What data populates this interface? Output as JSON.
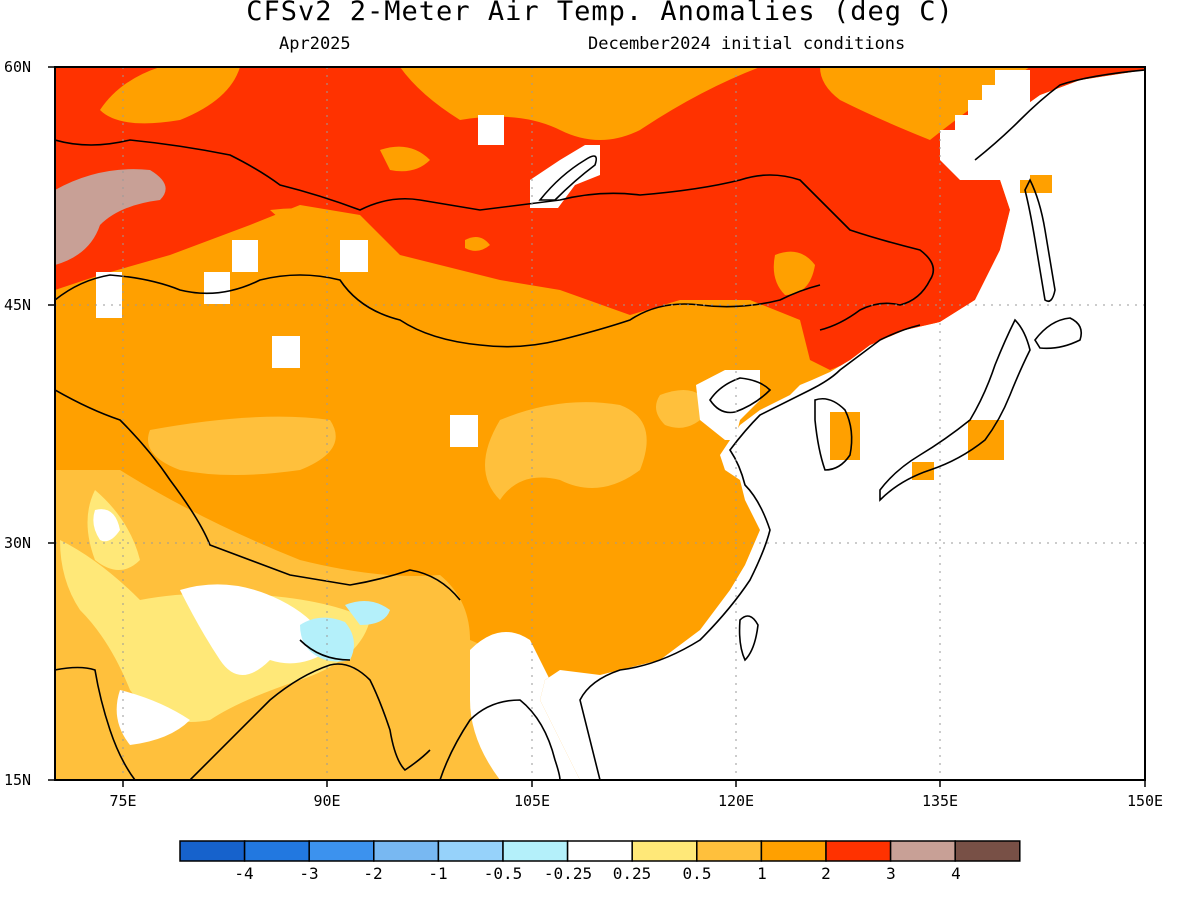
{
  "title": "CFSv2 2-Meter Air Temp. Anomalies (deg C)",
  "subtitle_left": "Apr2025",
  "subtitle_right": "December2024 initial conditions",
  "latitude_labels": [
    "60N",
    "45N",
    "30N",
    "15N"
  ],
  "longitude_labels": [
    "75E",
    "90E",
    "105E",
    "120E",
    "135E",
    "150E"
  ],
  "map": {
    "region": "East & Central Asia",
    "lon_range_deg": [
      70,
      150
    ],
    "lat_range_deg": [
      15,
      60
    ],
    "gridlines": "dotted",
    "coastlines": true,
    "national_borders": true
  },
  "colorbar": {
    "bins": [
      {
        "range": "< -4",
        "color": "#1662cc"
      },
      {
        "range": "-4 to -3",
        "color": "#2278e0"
      },
      {
        "range": "-3 to -2",
        "color": "#3c92ee"
      },
      {
        "range": "-2 to -1",
        "color": "#78b8f2"
      },
      {
        "range": "-1 to -0.5",
        "color": "#96d2fa"
      },
      {
        "range": "-0.5 to -0.25",
        "color": "#b4f0fa"
      },
      {
        "range": "-0.25 to 0.25",
        "color": "#ffffff"
      },
      {
        "range": "0.25 to 0.5",
        "color": "#ffe878"
      },
      {
        "range": "0.5 to 1",
        "color": "#ffc03c"
      },
      {
        "range": "1 to 2",
        "color": "#ffa000"
      },
      {
        "range": "2 to 3",
        "color": "#ff3200"
      },
      {
        "range": "3 to 4",
        "color": "#c8a096"
      },
      {
        "range": "> 4",
        "color": "#785046"
      }
    ],
    "tick_labels": [
      "-4",
      "-3",
      "-2",
      "-1",
      "-0.5",
      "-0.25",
      "0.25",
      "0.5",
      "1",
      "2",
      "3",
      "4"
    ]
  },
  "anomaly_regions": [
    {
      "name": "northern Mongolia / southern Siberia / Manchuria",
      "category": "2 to 3"
    },
    {
      "name": "western Kazakhstan",
      "category": "3 to 4"
    },
    {
      "name": "Tibetan Plateau / central and southern China",
      "category": "1 to 2"
    },
    {
      "name": "Himalayan foothills / northern India",
      "category": "0.5 to 1"
    },
    {
      "name": "central India",
      "category": "0.25 to 0.5"
    },
    {
      "name": "Bangladesh",
      "category": "-0.5 to -0.25"
    },
    {
      "name": "Southeast Asia / Japan / ocean",
      "category": "-0.25 to 0.25"
    }
  ]
}
